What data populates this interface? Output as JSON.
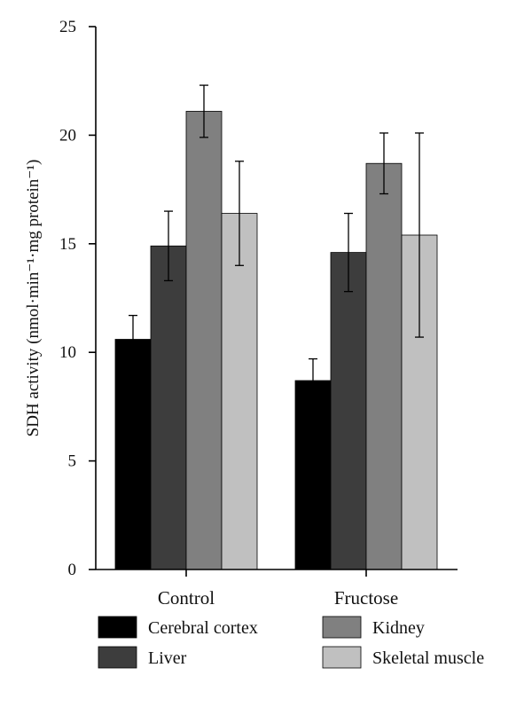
{
  "chart_data": {
    "type": "bar",
    "categories": [
      "Control",
      "Fructose"
    ],
    "series": [
      {
        "name": "Cerebral cortex",
        "color": "#000000",
        "values": [
          10.6,
          8.7
        ],
        "errors": [
          1.1,
          1.0
        ]
      },
      {
        "name": "Liver",
        "color": "#3d3d3d",
        "values": [
          14.9,
          14.6
        ],
        "errors": [
          1.6,
          1.8
        ]
      },
      {
        "name": "Kidney",
        "color": "#808080",
        "values": [
          21.1,
          18.7
        ],
        "errors": [
          1.2,
          1.4
        ]
      },
      {
        "name": "Skeletal muscle",
        "color": "#c0c0c0",
        "values": [
          16.4,
          15.4
        ],
        "errors": [
          2.4,
          4.7
        ]
      }
    ],
    "ylabel": "SDH activity (nmol·min⁻¹·mg protein⁻¹)",
    "ylim": [
      0,
      25
    ],
    "yticks": [
      0,
      5,
      10,
      15,
      20,
      25
    ],
    "legend_position": "bottom",
    "grid": false
  }
}
